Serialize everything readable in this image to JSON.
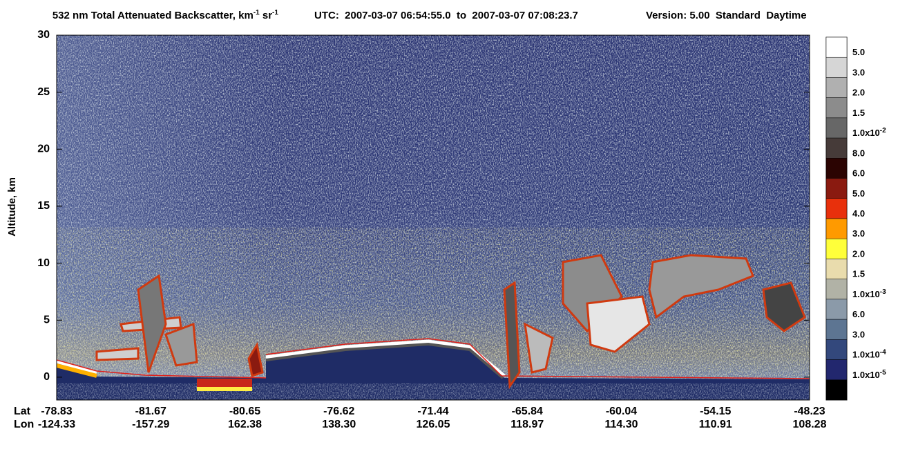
{
  "chart_data": {
    "type": "curtain",
    "title": [
      {
        "text": "532 nm Total Attenuated Backscatter, km"
      },
      {
        "sup": "-1"
      },
      {
        "text": " sr"
      },
      {
        "sup": "-1"
      }
    ],
    "time_range": "UTC:  2007-03-07 06:54:55.0  to  2007-03-07 07:08:23.7",
    "product": "Version: 5.00  Standard  Daytime",
    "ylabel": "Altitude, km",
    "ylim": [
      -2,
      30
    ],
    "yticks": [
      0,
      5,
      10,
      15,
      20,
      25,
      30
    ],
    "x_rows": [
      {
        "name": "Lat",
        "values": [
          "-78.83",
          "-81.67",
          "-80.65",
          "-76.62",
          "-71.44",
          "-65.84",
          "-60.04",
          "-54.15",
          "-48.23"
        ]
      },
      {
        "name": "Lon",
        "values": [
          "-124.33",
          "-157.29",
          "162.38",
          "138.30",
          "126.05",
          "118.97",
          "114.30",
          "110.91",
          "108.28"
        ]
      }
    ],
    "colorbar": {
      "colors": [
        "#ffffff",
        "#d6d6d6",
        "#b0b0b0",
        "#8c8c8c",
        "#676767",
        "#463b39",
        "#2b0402",
        "#8a1a10",
        "#e8300c",
        "#ff9a00",
        "#ffff3a",
        "#e9dcad",
        "#b1b2a6",
        "#8b9aa9",
        "#5d7592",
        "#33487c",
        "#22276e",
        "#000000"
      ],
      "labels": [
        {
          "text": "5.0"
        },
        {
          "text": "3.0"
        },
        {
          "text": "2.0"
        },
        {
          "text": "1.5"
        },
        {
          "text": "1.0x10",
          "sup": "-2"
        },
        {
          "text": "8.0"
        },
        {
          "text": "6.0"
        },
        {
          "text": "5.0"
        },
        {
          "text": "4.0"
        },
        {
          "text": "3.0"
        },
        {
          "text": "2.0"
        },
        {
          "text": "1.5"
        },
        {
          "text": "1.0x10",
          "sup": "-3"
        },
        {
          "text": "6.0"
        },
        {
          "text": "3.0"
        },
        {
          "text": "1.0x10",
          "sup": "-4"
        },
        {
          "text": "1.0x10",
          "sup": "-5"
        }
      ]
    }
  }
}
